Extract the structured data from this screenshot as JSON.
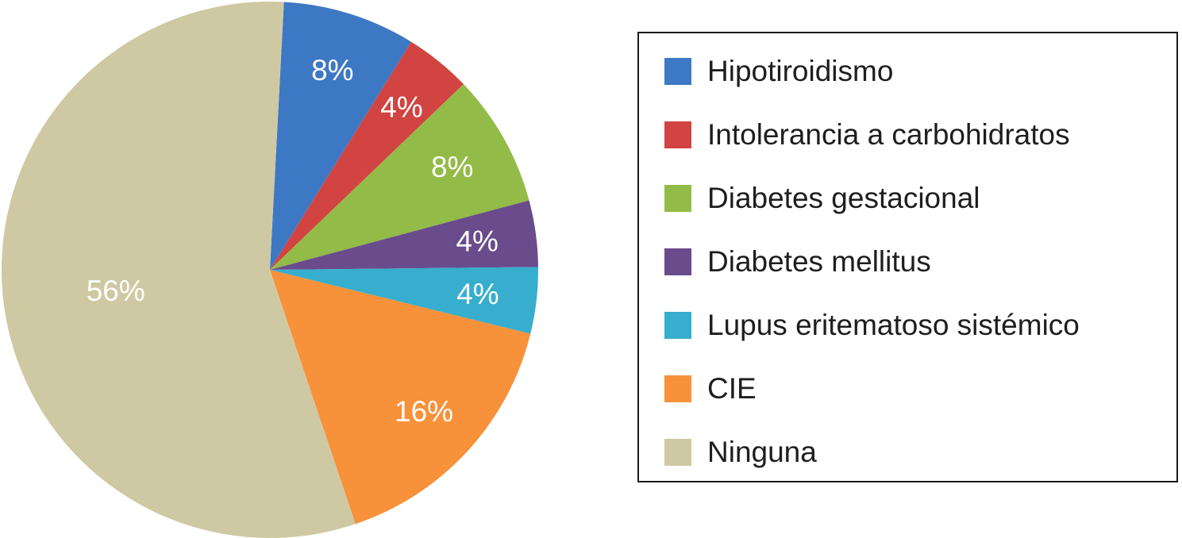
{
  "chart_data": {
    "type": "pie",
    "categories": [
      "Hipotiroidismo",
      "Intolerancia a carbohidratos",
      "Diabetes gestacional",
      "Diabetes mellitus",
      "Lupus eritematoso sistémico",
      "CIE",
      "Ninguna"
    ],
    "values": [
      8,
      4,
      8,
      4,
      4,
      16,
      56
    ],
    "data_labels": [
      "8%",
      "4%",
      "8%",
      "4%",
      "4%",
      "16%",
      "56%"
    ],
    "colors": [
      "#3d78c4",
      "#d14441",
      "#93bb47",
      "#6a4b8c",
      "#37aecd",
      "#f7913a",
      "#cfc9a3"
    ],
    "start_angle_deg": 3,
    "direction": "clockwise",
    "legend_position": "right"
  }
}
